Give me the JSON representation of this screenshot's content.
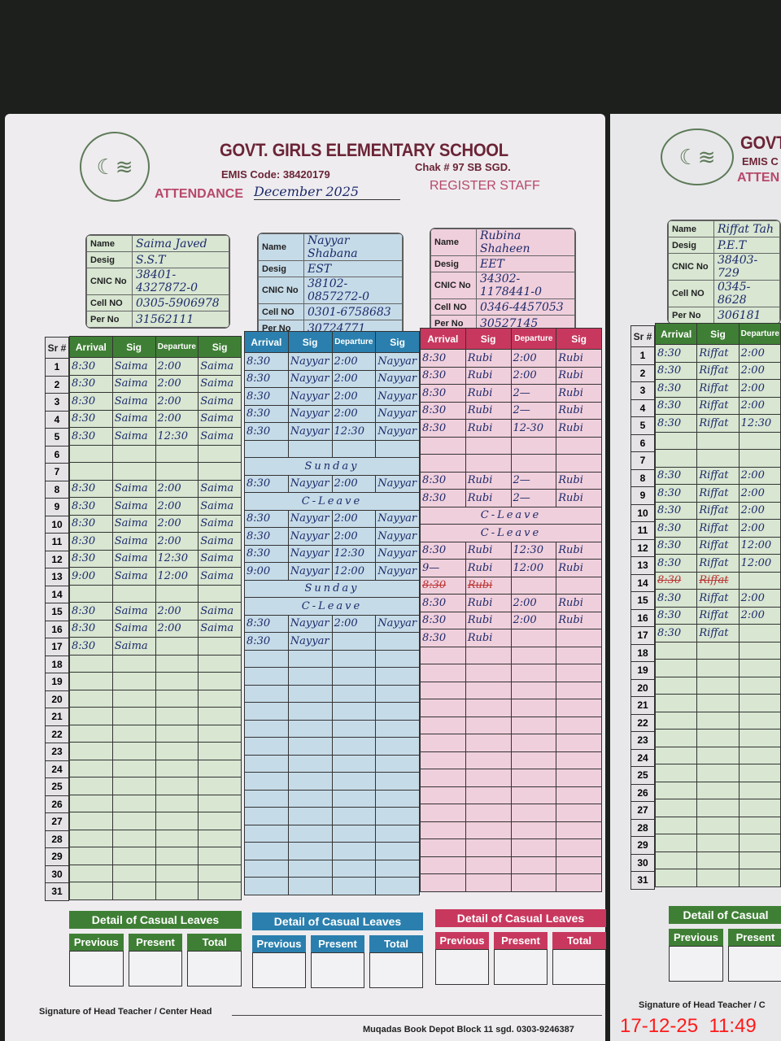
{
  "header": {
    "school": "GOVT. GIRLS ELEMENTARY SCHOOL",
    "emis": "EMIS Code: 38420179",
    "chak": "Chak # 97 SB SGD.",
    "attendance_label": "ATTENDANCE",
    "attendance_month": "December 2025",
    "register": "REGISTER STAFF"
  },
  "right_header": {
    "school": "GOVT",
    "emis": "EMIS C",
    "attendance": "ATTEN"
  },
  "info_labels": [
    "Name",
    "Desig",
    "CNIC No",
    "Cell NO",
    "Per No"
  ],
  "columns": [
    "Sr #",
    "Arrival",
    "Sig",
    "Departure",
    "Sig"
  ],
  "colors": {
    "green": "#3f7f35",
    "blue": "#2a7fae",
    "pink": "#c8385e",
    "green_bg": "#d8e6d2",
    "blue_bg": "#c6dbe8",
    "pink_bg": "#f0cfdc"
  },
  "staff": [
    {
      "name": "Saima Javed",
      "desig": "S.S.T",
      "cnic": "38401-4327872-0",
      "cell": "0305-5906978",
      "per": "31562111",
      "color": "green",
      "rows": [
        [
          "8:30",
          "Saima",
          "2:00",
          "Saima"
        ],
        [
          "8:30",
          "Saima",
          "2:00",
          "Saima"
        ],
        [
          "8:30",
          "Saima",
          "2:00",
          "Saima"
        ],
        [
          "8:30",
          "Saima",
          "2:00",
          "Saima"
        ],
        [
          "8:30",
          "Saima",
          "12:30",
          "Saima"
        ],
        [
          "",
          "",
          "",
          ""
        ],
        [
          "",
          "",
          "",
          ""
        ],
        [
          "8:30",
          "Saima",
          "2:00",
          "Saima"
        ],
        [
          "8:30",
          "Saima",
          "2:00",
          "Saima"
        ],
        [
          "8:30",
          "Saima",
          "2:00",
          "Saima"
        ],
        [
          "8:30",
          "Saima",
          "2:00",
          "Saima"
        ],
        [
          "8:30",
          "Saima",
          "12:30",
          "Saima"
        ],
        [
          "9:00",
          "Saima",
          "12:00",
          "Saima"
        ],
        [
          "",
          "",
          "",
          ""
        ],
        [
          "8:30",
          "Saima",
          "2:00",
          "Saima"
        ],
        [
          "8:30",
          "Saima",
          "2:00",
          "Saima"
        ],
        [
          "8:30",
          "Saima",
          "",
          ""
        ]
      ],
      "notes": {}
    },
    {
      "name": "Nayyar Shabana",
      "desig": "EST",
      "cnic": "38102-0857272-0",
      "cell": "0301-6758683",
      "per": "30724771",
      "color": "blue",
      "rows": [
        [
          "8:30",
          "Nayyar",
          "2:00",
          "Nayyar"
        ],
        [
          "8:30",
          "Nayyar",
          "2:00",
          "Nayyar"
        ],
        [
          "8:30",
          "Nayyar",
          "2:00",
          "Nayyar"
        ],
        [
          "8:30",
          "Nayyar",
          "2:00",
          "Nayyar"
        ],
        [
          "8:30",
          "Nayyar",
          "12:30",
          "Nayyar"
        ],
        [
          "",
          "",
          "",
          ""
        ],
        [
          "",
          "",
          "",
          ""
        ],
        [
          "8:30",
          "Nayyar",
          "2:00",
          "Nayyar"
        ],
        [
          "",
          "",
          "",
          ""
        ],
        [
          "8:30",
          "Nayyar",
          "2:00",
          "Nayyar"
        ],
        [
          "8:30",
          "Nayyar",
          "2:00",
          "Nayyar"
        ],
        [
          "8:30",
          "Nayyar",
          "12:30",
          "Nayyar"
        ],
        [
          "9:00",
          "Nayyar",
          "12:00",
          "Nayyar"
        ],
        [
          "",
          "",
          "",
          ""
        ],
        [
          "",
          "",
          "",
          ""
        ],
        [
          "8:30",
          "Nayyar",
          "2:00",
          "Nayyar"
        ],
        [
          "8:30",
          "Nayyar",
          "",
          ""
        ]
      ],
      "notes": {
        "7": "Sunday",
        "9": "C-Leave",
        "14": "Sunday",
        "15": "C-Leave"
      }
    },
    {
      "name": "Rubina Shaheen",
      "desig": "EET",
      "cnic": "34302-1178441-0",
      "cell": "0346-4457053",
      "per": "30527145",
      "color": "pink",
      "rows": [
        [
          "8:30",
          "Rubi",
          "2:00",
          "Rubi"
        ],
        [
          "8:30",
          "Rubi",
          "2:00",
          "Rubi"
        ],
        [
          "8:30",
          "Rubi",
          "2—",
          "Rubi"
        ],
        [
          "8:30",
          "Rubi",
          "2—",
          "Rubi"
        ],
        [
          "8:30",
          "Rubi",
          "12-30",
          "Rubi"
        ],
        [
          "",
          "",
          "",
          ""
        ],
        [
          "",
          "",
          "",
          ""
        ],
        [
          "8:30",
          "Rubi",
          "2—",
          "Rubi"
        ],
        [
          "8:30",
          "Rubi",
          "2—",
          "Rubi"
        ],
        [
          "",
          "",
          "",
          ""
        ],
        [
          "",
          "",
          "",
          ""
        ],
        [
          "8:30",
          "Rubi",
          "12:30",
          "Rubi"
        ],
        [
          "9—",
          "Rubi",
          "12:00",
          "Rubi"
        ],
        [
          "8:30",
          "Rubi",
          "",
          ""
        ],
        [
          "8:30",
          "Rubi",
          "2:00",
          "Rubi"
        ],
        [
          "8:30",
          "Rubi",
          "2:00",
          "Rubi"
        ],
        [
          "8:30",
          "Rubi",
          "",
          ""
        ]
      ],
      "notes": {
        "10": "C-Leave",
        "11": "C-Leave"
      }
    },
    {
      "name": "Riffat Tah",
      "desig": "P.E.T",
      "cnic": "38403-729",
      "cell": "0345-8628",
      "per": "306181",
      "color": "green",
      "rows": [
        [
          "8:30",
          "Riffat",
          "2:00"
        ],
        [
          "8:30",
          "Riffat",
          "2:00"
        ],
        [
          "8:30",
          "Riffat",
          "2:00"
        ],
        [
          "8:30",
          "Riffat",
          "2:00"
        ],
        [
          "8:30",
          "Riffat",
          "12:30"
        ],
        [
          "",
          "",
          ""
        ],
        [
          "",
          "",
          ""
        ],
        [
          "8:30",
          "Riffat",
          "2:00"
        ],
        [
          "8:30",
          "Riffat",
          "2:00"
        ],
        [
          "8:30",
          "Riffat",
          "2:00"
        ],
        [
          "8:30",
          "Riffat",
          "2:00"
        ],
        [
          "8:30",
          "Riffat",
          "12:00"
        ],
        [
          "8:30",
          "Riffat",
          "12:00"
        ],
        [
          "8:30",
          "Riffat",
          ""
        ],
        [
          "8:30",
          "Riffat",
          "2:00"
        ],
        [
          "8:30",
          "Riffat",
          "2:00"
        ],
        [
          "8:30",
          "Riffat",
          ""
        ]
      ],
      "notes": {}
    }
  ],
  "casual_leaves": {
    "title": "Detail of Casual Leaves",
    "title_partial": "Detail of Casual",
    "cols": [
      "Previous",
      "Present",
      "Total"
    ]
  },
  "footer": {
    "signature": "Signature of Head Teacher / Center Head",
    "signature_partial": "Signature of Head Teacher / C",
    "printer": "Muqadas Book Depot Block 11 sgd. 0303-9246387",
    "timestamp": "17-12-25  11:49"
  }
}
